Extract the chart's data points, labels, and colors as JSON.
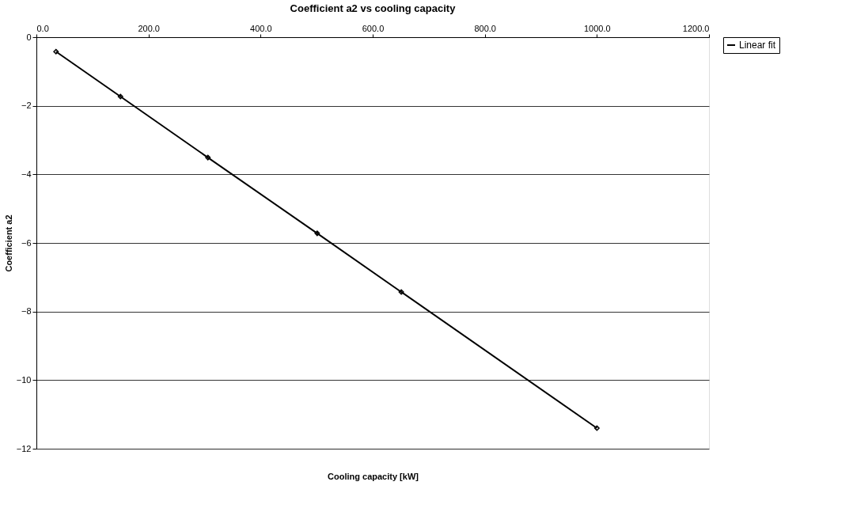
{
  "chart_data": {
    "type": "line",
    "title": "Coefficient a2 vs cooling capacity",
    "xlabel": "Cooling capacity [kW]",
    "ylabel": "Coefficient a2",
    "x": [
      35,
      150,
      306,
      501,
      651,
      1000
    ],
    "series": [
      {
        "name": "Linear fit",
        "color": "#000000",
        "values": [
          -0.42,
          -1.73,
          -3.51,
          -5.72,
          -7.43,
          -11.4
        ]
      }
    ],
    "xlim": [
      0,
      1200
    ],
    "xticks": [
      {
        "value": 0,
        "label": "0.0"
      },
      {
        "value": 200,
        "label": "200.0"
      },
      {
        "value": 400,
        "label": "400.0"
      },
      {
        "value": 600,
        "label": "600.0"
      },
      {
        "value": 800,
        "label": "800.0"
      },
      {
        "value": 1000,
        "label": "1000.0"
      },
      {
        "value": 1200,
        "label": "1200.0"
      }
    ],
    "ylim": [
      -12,
      0
    ],
    "yticks": [
      0,
      -2,
      -4,
      -6,
      -8,
      -10,
      -12
    ],
    "grid": "y",
    "legend": "right",
    "marker": "diamond",
    "line_style": "solid"
  }
}
